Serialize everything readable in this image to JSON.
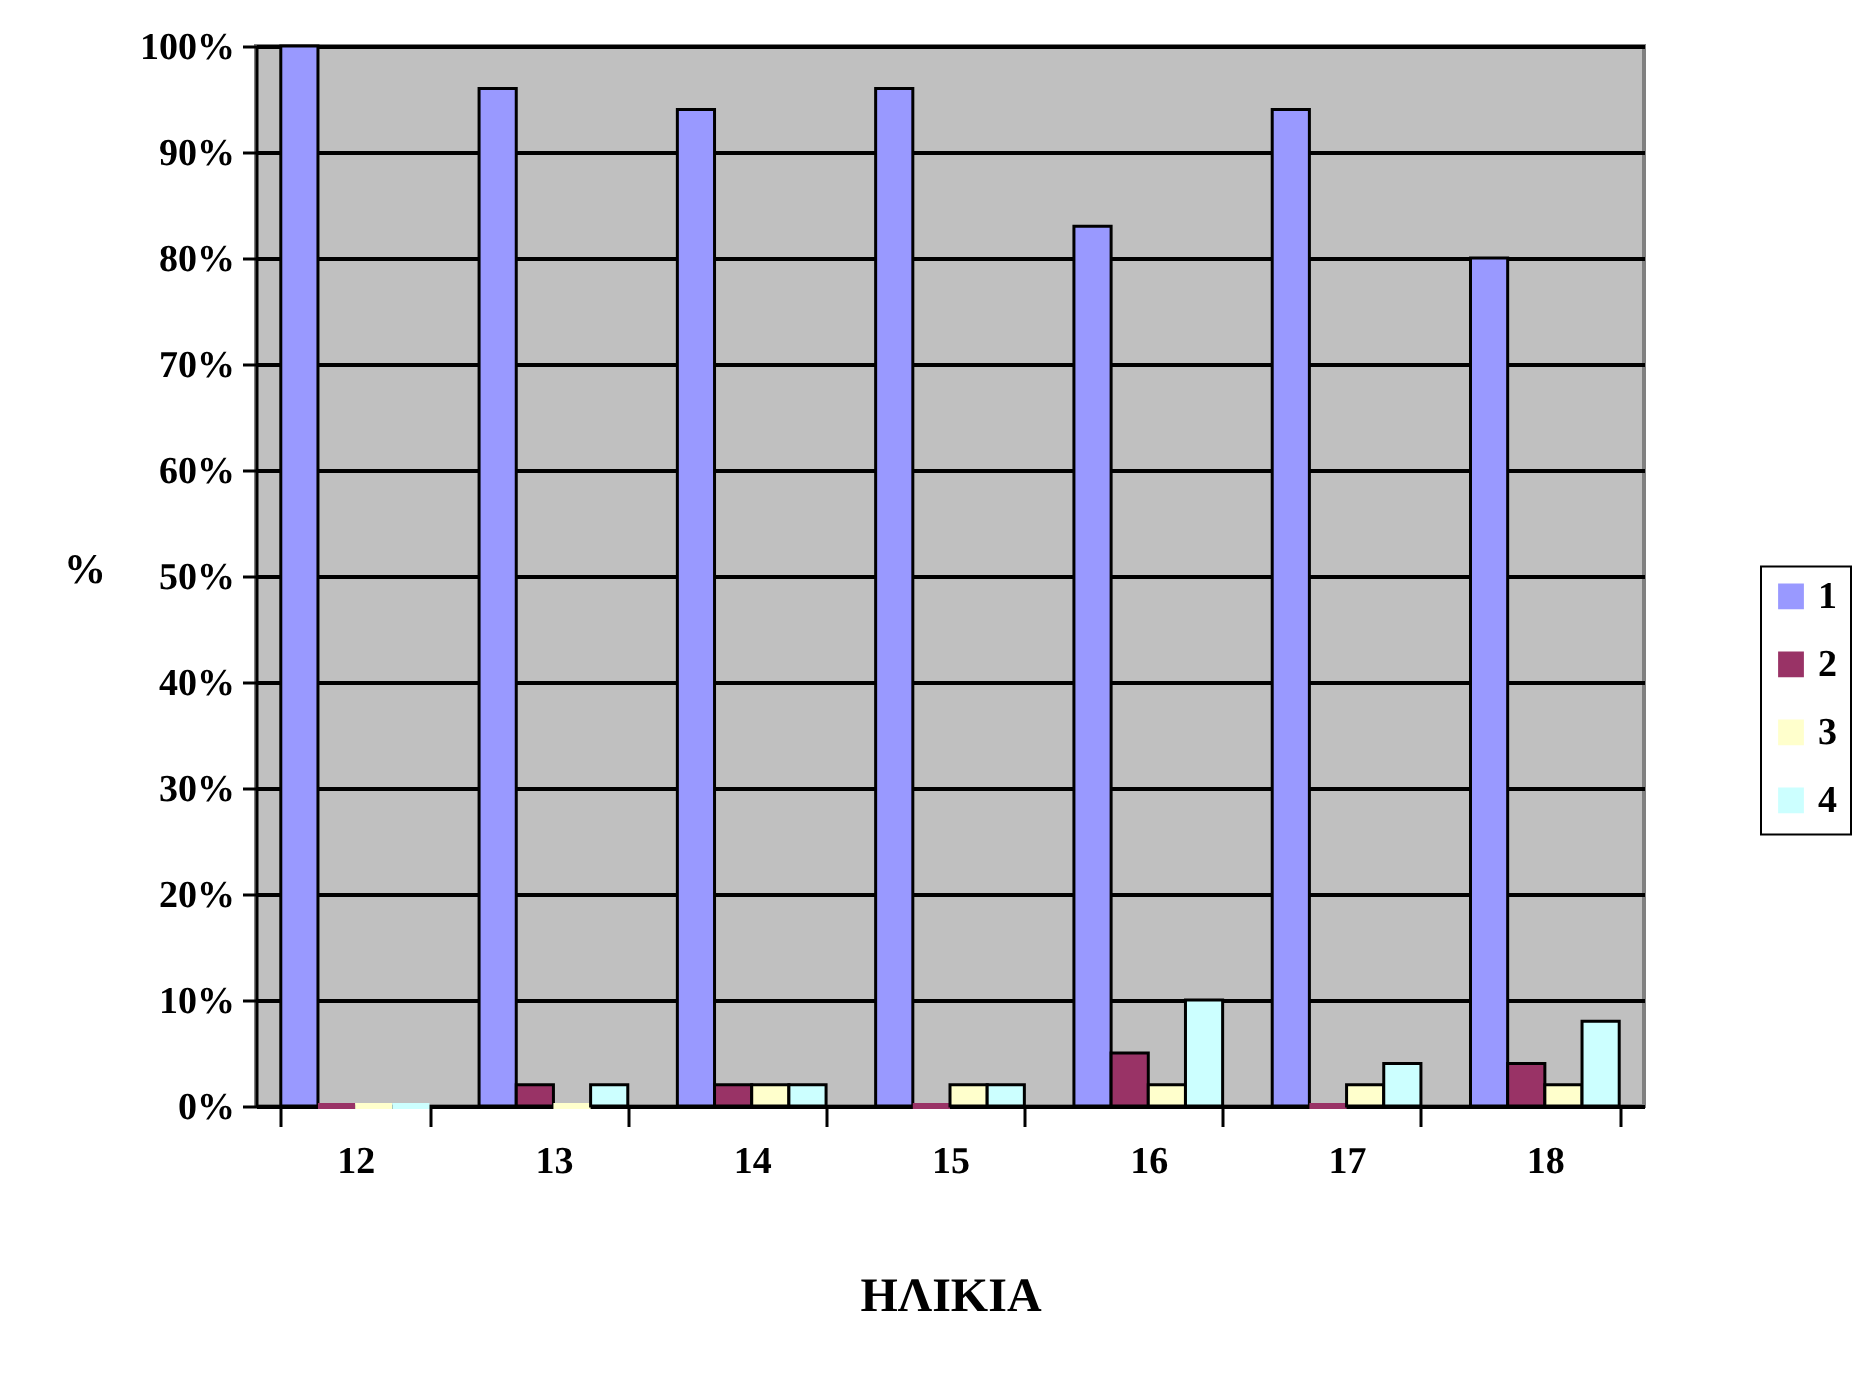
{
  "chart_data": {
    "type": "bar",
    "xlabel": "ΗΛΙΚΙΑ",
    "ylabel": "%",
    "categories": [
      "12",
      "13",
      "14",
      "15",
      "16",
      "17",
      "18"
    ],
    "series": [
      {
        "name": "1",
        "color": "#9999ff",
        "values": [
          100,
          96,
          94,
          96,
          83,
          94,
          80
        ]
      },
      {
        "name": "2",
        "color": "#993366",
        "values": [
          0,
          2,
          2,
          0,
          5,
          0,
          4
        ]
      },
      {
        "name": "3",
        "color": "#ffffcc",
        "values": [
          0,
          0,
          2,
          2,
          2,
          2,
          2
        ]
      },
      {
        "name": "4",
        "color": "#ccffff",
        "values": [
          0,
          2,
          2,
          2,
          10,
          4,
          8
        ]
      }
    ],
    "ylim": [
      0,
      100
    ],
    "yticks": [
      {
        "value": 0,
        "label": "0%"
      },
      {
        "value": 10,
        "label": "10%"
      },
      {
        "value": 20,
        "label": "20%"
      },
      {
        "value": 30,
        "label": "30%"
      },
      {
        "value": 40,
        "label": "40%"
      },
      {
        "value": 50,
        "label": "50%"
      },
      {
        "value": 60,
        "label": "60%"
      },
      {
        "value": 70,
        "label": "70%"
      },
      {
        "value": 80,
        "label": "80%"
      },
      {
        "value": 90,
        "label": "90%"
      },
      {
        "value": 100,
        "label": "100%"
      }
    ],
    "grid": "y",
    "legend": "right"
  }
}
